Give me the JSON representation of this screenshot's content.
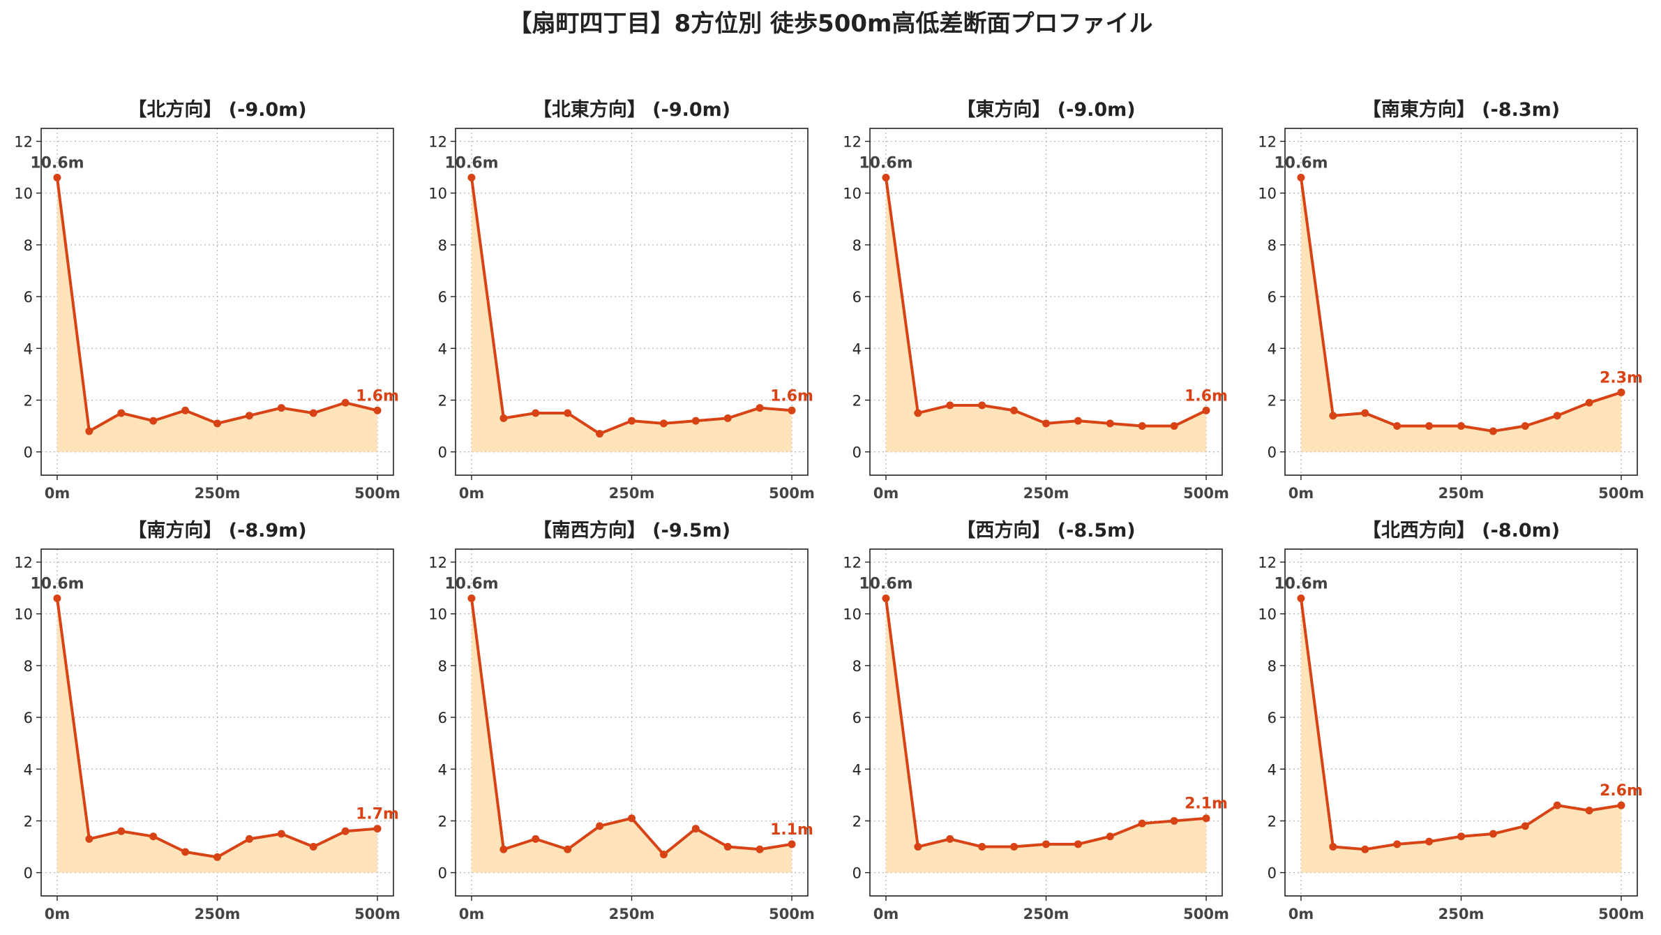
{
  "figure_title": "【扇町四丁目】8方位別 徒歩500m高低差断面プロファイル",
  "colors": {
    "line": "#d84315",
    "fill": "#ffe0b2",
    "grid": "#b0b0b0",
    "start_label": "#424242",
    "end_label": "#d84315"
  },
  "chart_data": [
    {
      "type": "area",
      "title": "【北方向】 (-9.0m)",
      "x": [
        0,
        50,
        100,
        150,
        200,
        250,
        300,
        350,
        400,
        450,
        500
      ],
      "y": [
        10.6,
        0.8,
        1.5,
        1.2,
        1.6,
        1.1,
        1.4,
        1.7,
        1.5,
        1.9,
        1.6
      ],
      "start_label": "10.6m",
      "end_label": "1.6m",
      "xticks": [
        "0m",
        "250m",
        "500m"
      ],
      "yticks": [
        "0",
        "2",
        "4",
        "6",
        "8",
        "10",
        "12"
      ],
      "ylim": [
        -0.9,
        12.5
      ],
      "xlim": [
        -25,
        525
      ],
      "grid": true
    },
    {
      "type": "area",
      "title": "【北東方向】 (-9.0m)",
      "x": [
        0,
        50,
        100,
        150,
        200,
        250,
        300,
        350,
        400,
        450,
        500
      ],
      "y": [
        10.6,
        1.3,
        1.5,
        1.5,
        0.7,
        1.2,
        1.1,
        1.2,
        1.3,
        1.7,
        1.6
      ],
      "start_label": "10.6m",
      "end_label": "1.6m",
      "xticks": [
        "0m",
        "250m",
        "500m"
      ],
      "yticks": [
        "0",
        "2",
        "4",
        "6",
        "8",
        "10",
        "12"
      ],
      "ylim": [
        -0.9,
        12.5
      ],
      "xlim": [
        -25,
        525
      ],
      "grid": true
    },
    {
      "type": "area",
      "title": "【東方向】 (-9.0m)",
      "x": [
        0,
        50,
        100,
        150,
        200,
        250,
        300,
        350,
        400,
        450,
        500
      ],
      "y": [
        10.6,
        1.5,
        1.8,
        1.8,
        1.6,
        1.1,
        1.2,
        1.1,
        1.0,
        1.0,
        1.6
      ],
      "start_label": "10.6m",
      "end_label": "1.6m",
      "xticks": [
        "0m",
        "250m",
        "500m"
      ],
      "yticks": [
        "0",
        "2",
        "4",
        "6",
        "8",
        "10",
        "12"
      ],
      "ylim": [
        -0.9,
        12.5
      ],
      "xlim": [
        -25,
        525
      ],
      "grid": true
    },
    {
      "type": "area",
      "title": "【南東方向】 (-8.3m)",
      "x": [
        0,
        50,
        100,
        150,
        200,
        250,
        300,
        350,
        400,
        450,
        500
      ],
      "y": [
        10.6,
        1.4,
        1.5,
        1.0,
        1.0,
        1.0,
        0.8,
        1.0,
        1.4,
        1.9,
        2.3
      ],
      "start_label": "10.6m",
      "end_label": "2.3m",
      "xticks": [
        "0m",
        "250m",
        "500m"
      ],
      "yticks": [
        "0",
        "2",
        "4",
        "6",
        "8",
        "10",
        "12"
      ],
      "ylim": [
        -0.9,
        12.5
      ],
      "xlim": [
        -25,
        525
      ],
      "grid": true
    },
    {
      "type": "area",
      "title": "【南方向】 (-8.9m)",
      "x": [
        0,
        50,
        100,
        150,
        200,
        250,
        300,
        350,
        400,
        450,
        500
      ],
      "y": [
        10.6,
        1.3,
        1.6,
        1.4,
        0.8,
        0.6,
        1.3,
        1.5,
        1.0,
        1.6,
        1.7
      ],
      "start_label": "10.6m",
      "end_label": "1.7m",
      "xticks": [
        "0m",
        "250m",
        "500m"
      ],
      "yticks": [
        "0",
        "2",
        "4",
        "6",
        "8",
        "10",
        "12"
      ],
      "ylim": [
        -0.9,
        12.5
      ],
      "xlim": [
        -25,
        525
      ],
      "grid": true
    },
    {
      "type": "area",
      "title": "【南西方向】 (-9.5m)",
      "x": [
        0,
        50,
        100,
        150,
        200,
        250,
        300,
        350,
        400,
        450,
        500
      ],
      "y": [
        10.6,
        0.9,
        1.3,
        0.9,
        1.8,
        2.1,
        0.7,
        1.7,
        1.0,
        0.9,
        1.1
      ],
      "start_label": "10.6m",
      "end_label": "1.1m",
      "xticks": [
        "0m",
        "250m",
        "500m"
      ],
      "yticks": [
        "0",
        "2",
        "4",
        "6",
        "8",
        "10",
        "12"
      ],
      "ylim": [
        -0.9,
        12.5
      ],
      "xlim": [
        -25,
        525
      ],
      "grid": true
    },
    {
      "type": "area",
      "title": "【西方向】 (-8.5m)",
      "x": [
        0,
        50,
        100,
        150,
        200,
        250,
        300,
        350,
        400,
        450,
        500
      ],
      "y": [
        10.6,
        1.0,
        1.3,
        1.0,
        1.0,
        1.1,
        1.1,
        1.4,
        1.9,
        2.0,
        2.1
      ],
      "start_label": "10.6m",
      "end_label": "2.1m",
      "xticks": [
        "0m",
        "250m",
        "500m"
      ],
      "yticks": [
        "0",
        "2",
        "4",
        "6",
        "8",
        "10",
        "12"
      ],
      "ylim": [
        -0.9,
        12.5
      ],
      "xlim": [
        -25,
        525
      ],
      "grid": true
    },
    {
      "type": "area",
      "title": "【北西方向】 (-8.0m)",
      "x": [
        0,
        50,
        100,
        150,
        200,
        250,
        300,
        350,
        400,
        450,
        500
      ],
      "y": [
        10.6,
        1.0,
        0.9,
        1.1,
        1.2,
        1.4,
        1.5,
        1.8,
        2.6,
        2.4,
        2.6
      ],
      "start_label": "10.6m",
      "end_label": "2.6m",
      "xticks": [
        "0m",
        "250m",
        "500m"
      ],
      "yticks": [
        "0",
        "2",
        "4",
        "6",
        "8",
        "10",
        "12"
      ],
      "ylim": [
        -0.9,
        12.5
      ],
      "xlim": [
        -25,
        525
      ],
      "grid": true
    }
  ]
}
